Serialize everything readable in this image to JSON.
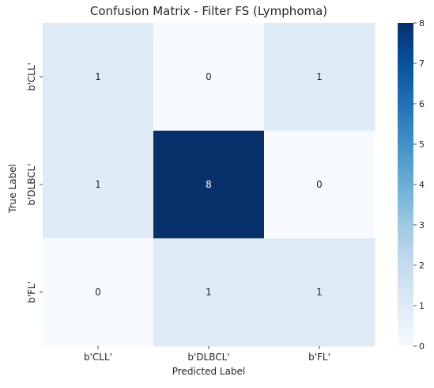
{
  "chart_data": {
    "type": "heatmap",
    "title": "Confusion Matrix - Filter FS (Lymphoma)",
    "xlabel": "Predicted Label",
    "ylabel": "True Label",
    "x_categories": [
      "b'CLL'",
      "b'DLBCL'",
      "b'FL'"
    ],
    "y_categories": [
      "b'CLL'",
      "b'DLBCL'",
      "b'FL'"
    ],
    "values": [
      [
        1,
        0,
        1
      ],
      [
        1,
        8,
        0
      ],
      [
        0,
        1,
        1
      ]
    ],
    "colorbar": {
      "min": 0,
      "max": 8,
      "ticks": [
        "0",
        "1",
        "2",
        "3",
        "4",
        "5",
        "6",
        "7",
        "8"
      ],
      "colormap": "Blues"
    },
    "colors": {
      "low": "#f7fbff",
      "high": "#08306b"
    }
  }
}
